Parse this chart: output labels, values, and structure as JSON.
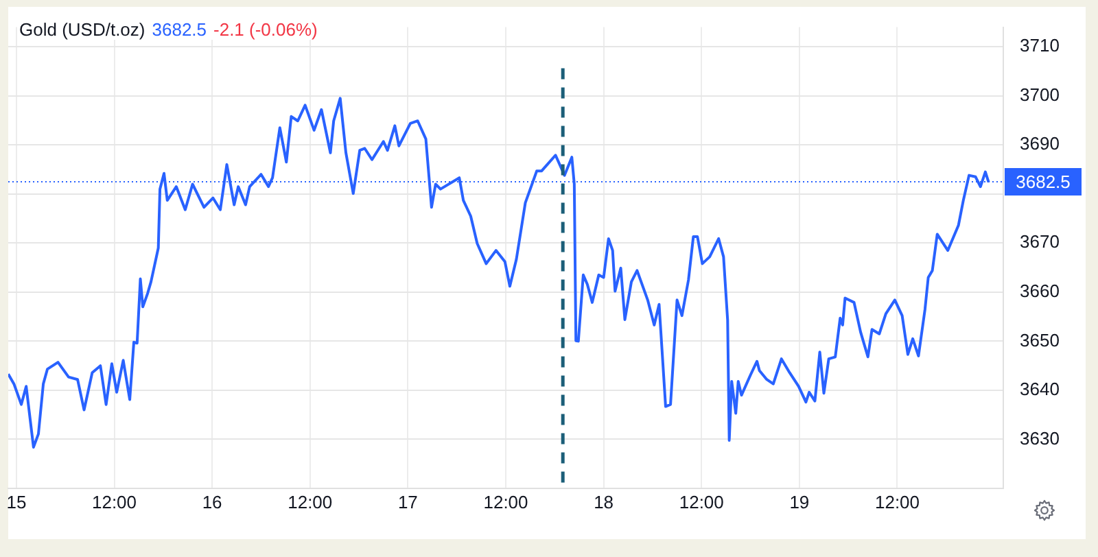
{
  "chart_data": {
    "type": "line",
    "title": "Gold (USD/t.oz)",
    "annotations": [
      "3682.5",
      "-2.1 (-0.06%)"
    ],
    "x": [
      "--09-14T23:00",
      "--09-14T23:42",
      "--09-15T00:36",
      "--09-15T01:12",
      "--09-15T02:06",
      "--09-15T02:42",
      "--09-15T03:18",
      "--09-15T03:48",
      "--09-15T05:06",
      "--09-15T06:24",
      "--09-15T07:30",
      "--09-15T08:18",
      "--09-15T09:18",
      "--09-15T10:18",
      "--09-15T11:00",
      "--09-15T11:42",
      "--09-15T12:18",
      "--09-15T13:06",
      "--09-15T13:54",
      "--09-15T14:24",
      "--09-15T14:48",
      "--09-15T15:12",
      "--09-15T15:30",
      "--09-15T16:06",
      "--09-15T16:30",
      "--09-15T17:24",
      "--09-15T17:36",
      "--09-15T18:06",
      "--09-15T18:30",
      "--09-15T19:36",
      "--09-15T20:42",
      "--09-15T21:36",
      "--09-15T23:00",
      "--09-16T00:06",
      "--09-16T01:00",
      "--09-16T01:48",
      "--09-16T02:42",
      "--09-16T03:12",
      "--09-16T04:06",
      "--09-16T04:36",
      "--09-16T06:00",
      "--09-16T06:54",
      "--09-16T07:24",
      "--09-16T08:18",
      "--09-16T09:06",
      "--09-16T09:42",
      "--09-16T10:30",
      "--09-16T11:24",
      "--09-16T12:30",
      "--09-16T13:24",
      "--09-16T14:30",
      "--09-16T14:54",
      "--09-16T15:42",
      "--09-16T16:24",
      "--09-16T17:18",
      "--09-16T18:06",
      "--09-16T18:42",
      "--09-16T19:36",
      "--09-16T21:00",
      "--09-16T21:30",
      "--09-16T22:24",
      "--09-16T22:54",
      "--09-17T00:18",
      "--09-17T01:12",
      "--09-17T02:12",
      "--09-17T02:54",
      "--09-17T03:24",
      "--09-17T04:00",
      "--09-17T06:18",
      "--09-17T06:48",
      "--09-17T07:42",
      "--09-17T08:30",
      "--09-17T09:36",
      "--09-17T10:48",
      "--09-17T11:54",
      "--09-17T12:30",
      "--09-17T13:18",
      "--09-17T14:24",
      "--09-17T15:48",
      "--09-17T16:24",
      "--09-17T18:06",
      "--09-17T19:12",
      "--09-17T20:06",
      "--09-17T20:24",
      "--09-17T20:36",
      "--09-17T20:54",
      "--09-17T21:30",
      "--09-17T22:00",
      "--09-17T22:36",
      "--09-17T23:24",
      "--09-18T00:00",
      "--09-18T00:36",
      "--09-18T01:06",
      "--09-18T01:24",
      "--09-18T02:06",
      "--09-18T02:36",
      "--09-18T03:24",
      "--09-18T04:06",
      "--09-18T05:24",
      "--09-18T06:12",
      "--09-18T06:48",
      "--09-18T07:36",
      "--09-18T08:12",
      "--09-18T09:00",
      "--09-18T09:36",
      "--09-18T10:24",
      "--09-18T11:00",
      "--09-18T11:30",
      "--09-18T12:06",
      "--09-18T13:00",
      "--09-18T14:06",
      "--09-18T14:42",
      "--09-18T15:12",
      "--09-18T15:24",
      "--09-18T15:42",
      "--09-18T16:12",
      "--09-18T16:30",
      "--09-18T16:54",
      "--09-18T18:00",
      "--09-18T18:48",
      "--09-18T19:06",
      "--09-18T20:00",
      "--09-18T20:48",
      "--09-18T21:48",
      "--09-18T22:48",
      "--09-18T23:54",
      "--09-19T00:48",
      "--09-19T01:12",
      "--09-19T01:54",
      "--09-19T02:30",
      "--09-19T03:00",
      "--09-19T03:36",
      "--09-19T04:24",
      "--09-19T05:00",
      "--09-19T05:18",
      "--09-19T05:36",
      "--09-19T06:42",
      "--09-19T07:30",
      "--09-19T08:24",
      "--09-19T08:54",
      "--09-19T09:48",
      "--09-19T10:36",
      "--09-19T11:42",
      "--09-19T12:36",
      "--09-19T13:18",
      "--09-19T13:54",
      "--09-19T14:36",
      "--09-19T15:24",
      "--09-19T15:48",
      "--09-19T16:18",
      "--09-19T16:54",
      "--09-19T18:12",
      "--09-19T19:30",
      "--09-19T20:06",
      "--09-19T20:48",
      "--09-19T21:36",
      "--09-19T22:12",
      "--09-19T22:48",
      "--09-19T23:12"
    ],
    "series": [
      {
        "color": "#2962ff",
        "values": [
          3643.3,
          3641.3,
          3637.1,
          3640.8,
          3628.4,
          3631.1,
          3641.3,
          3644.3,
          3645.7,
          3642.7,
          3642.2,
          3636.0,
          3643.6,
          3645.0,
          3637.1,
          3645.4,
          3639.6,
          3646.1,
          3638.1,
          3649.8,
          3649.6,
          3662.7,
          3657.0,
          3659.8,
          3662.1,
          3669.0,
          3681.0,
          3684.2,
          3678.7,
          3681.5,
          3676.8,
          3682.0,
          3677.3,
          3679.2,
          3676.8,
          3686.0,
          3677.8,
          3681.5,
          3677.8,
          3681.5,
          3684.0,
          3681.5,
          3683.3,
          3693.5,
          3686.5,
          3695.8,
          3694.9,
          3698.1,
          3693.0,
          3697.2,
          3688.4,
          3694.9,
          3699.5,
          3688.4,
          3680.1,
          3688.9,
          3689.3,
          3687.0,
          3690.7,
          3688.9,
          3693.9,
          3689.8,
          3694.4,
          3694.9,
          3691.2,
          3677.3,
          3682.0,
          3681.0,
          3683.3,
          3678.7,
          3675.5,
          3669.9,
          3665.8,
          3668.5,
          3666.2,
          3661.2,
          3666.7,
          3678.2,
          3684.7,
          3684.7,
          3687.9,
          3683.8,
          3687.5,
          3682.0,
          3650.1,
          3650.0,
          3663.5,
          3661.6,
          3657.9,
          3663.5,
          3663.0,
          3670.9,
          3668.5,
          3660.2,
          3664.9,
          3654.4,
          3662.1,
          3664.4,
          3658.4,
          3653.3,
          3657.5,
          3636.7,
          3637.1,
          3658.4,
          3655.2,
          3662.5,
          3671.3,
          3671.3,
          3665.8,
          3667.2,
          3670.9,
          3667.2,
          3654.3,
          3629.8,
          3641.8,
          3635.3,
          3641.8,
          3639.0,
          3643.1,
          3645.9,
          3644.0,
          3642.2,
          3641.3,
          3646.4,
          3643.6,
          3640.8,
          3637.6,
          3639.6,
          3637.8,
          3647.8,
          3639.4,
          3646.4,
          3646.8,
          3654.7,
          3653.3,
          3658.8,
          3657.9,
          3651.9,
          3646.8,
          3652.4,
          3651.5,
          3655.6,
          3658.4,
          3655.2,
          3647.3,
          3650.5,
          3647.0,
          3656.5,
          3663.0,
          3664.4,
          3671.8,
          3668.5,
          3673.6,
          3678.7,
          3683.8,
          3683.5,
          3681.5,
          3684.5,
          3682.4
        ]
      }
    ],
    "xlim": [
      "--09-14T23:00",
      "--09-20T01:00"
    ],
    "ylim": [
      3620,
      3714
    ],
    "xticks": [
      {
        "value": "--09-15",
        "label": "15"
      },
      {
        "value": "--09-15T12:00",
        "label": "12:00"
      },
      {
        "value": "--09-16",
        "label": "16"
      },
      {
        "value": "--09-16T12:00",
        "label": "12:00"
      },
      {
        "value": "--09-17",
        "label": "17"
      },
      {
        "value": "--09-17T12:00",
        "label": "12:00"
      },
      {
        "value": "--09-18",
        "label": "18"
      },
      {
        "value": "--09-18T12:00",
        "label": "12:00"
      },
      {
        "value": "--09-19",
        "label": "19"
      },
      {
        "value": "--09-19T12:00",
        "label": "12:00"
      }
    ],
    "yticks": [
      3630,
      3640,
      3650,
      3660,
      3670,
      {
        "value": 3680,
        "label": null
      },
      3690,
      3700,
      3710
    ],
    "ref_lines": [
      {
        "axis": "y",
        "value": 3682.5,
        "label": "3682.5",
        "color": "#2962ff",
        "line_style": "dotted"
      },
      {
        "axis": "x",
        "value": "--09-17T19:00",
        "color": "#1b5e78",
        "line_style": "dashed"
      }
    ],
    "grid": true,
    "legend": false,
    "marker": "none",
    "line_style": "solid"
  }
}
